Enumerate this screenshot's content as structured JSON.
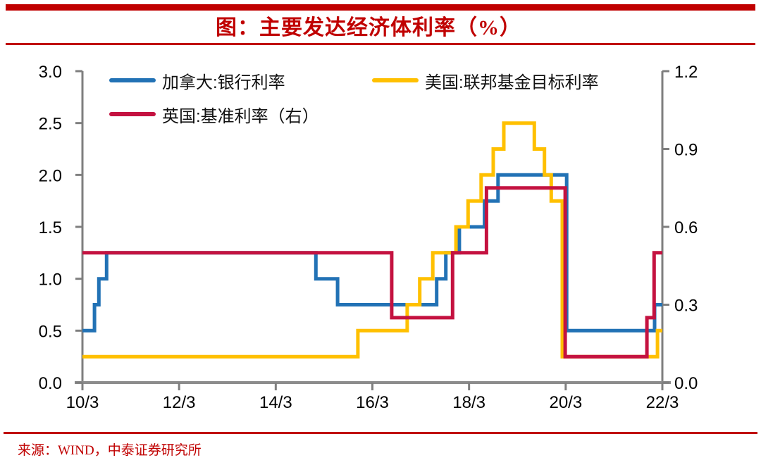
{
  "page": {
    "accent_color": "#C00000"
  },
  "header": {
    "title": "图：主要发达经济体利率（%）"
  },
  "footer": {
    "source": "来源：WIND，中泰证券研究所"
  },
  "chart_data": {
    "type": "line",
    "style": "step",
    "title": "图：主要发达经济体利率（%）",
    "grid": false,
    "legend_position": "top-left",
    "x_ticks": [
      "10/3",
      "12/3",
      "14/3",
      "16/3",
      "18/3",
      "20/3",
      "22/3"
    ],
    "x_range_years": 12,
    "left_axis": {
      "min": 0.0,
      "max": 3.0,
      "ticks": [
        "3.0",
        "2.5",
        "2.0",
        "1.5",
        "1.0",
        "0.5",
        "0.0"
      ]
    },
    "right_axis": {
      "min": 0.0,
      "max": 1.2,
      "ticks": [
        "1.2",
        "0.9",
        "0.6",
        "0.3",
        "0.0"
      ]
    },
    "axis_color": "#7F7F7F",
    "series": [
      {
        "key": "canada",
        "name": "加拿大:银行利率",
        "axis": "left",
        "color": "#2272B5",
        "points": [
          [
            0,
            0.5
          ],
          [
            0.25,
            0.75
          ],
          [
            0.34,
            1.0
          ],
          [
            0.5,
            1.25
          ],
          [
            4.83,
            1.0
          ],
          [
            5.28,
            0.75
          ],
          [
            7.33,
            1.0
          ],
          [
            7.52,
            1.25
          ],
          [
            7.8,
            1.5
          ],
          [
            8.32,
            1.75
          ],
          [
            8.6,
            2.0
          ],
          [
            10.02,
            0.5
          ],
          [
            11.84,
            0.75
          ]
        ]
      },
      {
        "key": "us",
        "name": "美国:联邦基金目标利率",
        "axis": "left",
        "color": "#FFC000",
        "points": [
          [
            0,
            0.25
          ],
          [
            5.7,
            0.5
          ],
          [
            6.72,
            0.75
          ],
          [
            6.98,
            1.0
          ],
          [
            7.25,
            1.25
          ],
          [
            7.73,
            1.5
          ],
          [
            7.98,
            1.75
          ],
          [
            8.25,
            2.0
          ],
          [
            8.5,
            2.25
          ],
          [
            8.72,
            2.5
          ],
          [
            9.35,
            2.25
          ],
          [
            9.56,
            2.0
          ],
          [
            9.7,
            1.75
          ],
          [
            9.93,
            0.25
          ],
          [
            11.9,
            0.5
          ]
        ]
      },
      {
        "key": "uk",
        "name": "英国:基准利率（右）",
        "axis": "right",
        "color": "#C41240",
        "points": [
          [
            0,
            0.5
          ],
          [
            6.4,
            0.25
          ],
          [
            7.66,
            0.5
          ],
          [
            8.36,
            0.75
          ],
          [
            9.99,
            0.1
          ],
          [
            11.68,
            0.25
          ],
          [
            11.83,
            0.5
          ]
        ]
      }
    ]
  }
}
